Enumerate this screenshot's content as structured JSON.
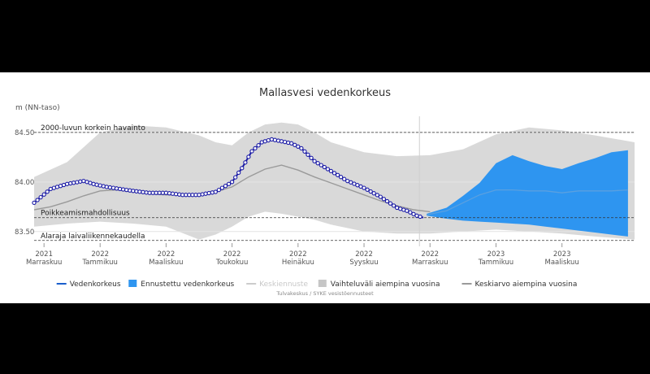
{
  "chart_data": {
    "type": "area",
    "title": "Mallasvesi vedenkorkeus",
    "ylabel": "m (NN-taso)",
    "ylim": [
      83.4,
      84.63
    ],
    "y_ticks": [
      "84.50",
      "84.00",
      "83.50"
    ],
    "y_tick_values": [
      84.5,
      84.0,
      83.5
    ],
    "x_range_months": [
      0,
      18.2
    ],
    "x_ticks": [
      {
        "year": "2021",
        "month": "Marraskuu",
        "pos": 0.3
      },
      {
        "year": "2022",
        "month": "Tammikuu",
        "pos": 2.0
      },
      {
        "year": "2022",
        "month": "Maaliskuu",
        "pos": 4.0
      },
      {
        "year": "2022",
        "month": "Toukokuu",
        "pos": 6.0
      },
      {
        "year": "2022",
        "month": "Heinäkuu",
        "pos": 8.0
      },
      {
        "year": "2022",
        "month": "Syyskuu",
        "pos": 10.0
      },
      {
        "year": "2022",
        "month": "Marraskuu",
        "pos": 12.0
      },
      {
        "year": "2023",
        "month": "Tammikuu",
        "pos": 14.0
      },
      {
        "year": "2023",
        "month": "Maaliskuu",
        "pos": 16.0
      }
    ],
    "forecast_start": 12.0,
    "reference_lines": [
      {
        "label": "2000-luvun korkein havainto",
        "value": 84.5
      },
      {
        "label": "Poikkeamismahdollisuus",
        "value": 83.64
      },
      {
        "label": "Alaraja laivaliikennekaudella",
        "value": 83.41
      }
    ],
    "series": [
      {
        "name": "Vedenkorkeus",
        "x": [
          0.0,
          0.5,
          1.0,
          1.5,
          1.8,
          2.2,
          2.6,
          3.0,
          3.5,
          4.0,
          4.5,
          5.0,
          5.5,
          6.0,
          6.3,
          6.6,
          6.9,
          7.2,
          7.5,
          7.8,
          8.1,
          8.5,
          9.0,
          9.5,
          10.0,
          10.5,
          11.0,
          11.3,
          11.6,
          11.8
        ],
        "y": [
          83.79,
          83.93,
          83.98,
          84.01,
          83.98,
          83.95,
          83.93,
          83.91,
          83.89,
          83.89,
          83.87,
          83.87,
          83.9,
          84.0,
          84.14,
          84.31,
          84.4,
          84.43,
          84.41,
          84.39,
          84.34,
          84.21,
          84.11,
          84.01,
          83.94,
          83.85,
          83.74,
          83.71,
          83.66,
          83.64
        ]
      },
      {
        "name": "Ennustettu vedenkorkeus",
        "x": [
          11.9,
          12.5,
          13.0,
          13.5,
          14.0,
          14.5,
          15.0,
          15.5,
          16.0,
          16.5,
          17.0,
          17.5,
          18.0
        ],
        "upper": [
          83.68,
          83.74,
          83.86,
          83.99,
          84.19,
          84.27,
          84.21,
          84.16,
          84.13,
          84.19,
          84.24,
          84.3,
          84.32
        ],
        "lower": [
          83.66,
          83.63,
          83.61,
          83.6,
          83.59,
          83.58,
          83.57,
          83.55,
          83.53,
          83.51,
          83.49,
          83.47,
          83.45
        ]
      },
      {
        "name": "Keskiennuste",
        "x": [
          11.9,
          12.5,
          13.0,
          13.5,
          14.0,
          14.5,
          15.0,
          15.5,
          16.0,
          16.5,
          17.0,
          17.5,
          18.0
        ],
        "y": [
          83.67,
          83.71,
          83.79,
          83.87,
          83.92,
          83.92,
          83.91,
          83.91,
          83.89,
          83.91,
          83.91,
          83.91,
          83.92
        ]
      },
      {
        "name": "Vaihteluväli aiempina vuosina",
        "x": [
          0,
          1,
          2,
          3,
          4,
          5,
          5.5,
          6,
          6.5,
          7,
          7.5,
          8,
          8.5,
          9,
          10,
          11,
          12,
          13,
          14,
          15,
          16,
          17,
          18.2
        ],
        "upper": [
          84.05,
          84.2,
          84.5,
          84.57,
          84.55,
          84.47,
          84.4,
          84.37,
          84.5,
          84.58,
          84.6,
          84.58,
          84.5,
          84.4,
          84.3,
          84.26,
          84.27,
          84.33,
          84.48,
          84.55,
          84.52,
          84.47,
          84.4
        ],
        "lower": [
          83.55,
          83.58,
          83.6,
          83.58,
          83.55,
          83.42,
          83.47,
          83.55,
          83.65,
          83.7,
          83.68,
          83.65,
          83.62,
          83.57,
          83.5,
          83.48,
          83.48,
          83.5,
          83.52,
          83.5,
          83.48,
          83.45,
          83.42
        ]
      },
      {
        "name": "Keskiarvo aiempina vuosina",
        "x": [
          0,
          0.5,
          1,
          1.5,
          2,
          2.5,
          3,
          3.5,
          4,
          4.5,
          5,
          5.5,
          6,
          6.5,
          7,
          7.5,
          8,
          8.5,
          9,
          9.5,
          10,
          10.5,
          11,
          11.5,
          12
        ],
        "y": [
          83.72,
          83.75,
          83.8,
          83.86,
          83.91,
          83.92,
          83.9,
          83.88,
          83.87,
          83.87,
          83.88,
          83.9,
          83.95,
          84.05,
          84.13,
          84.17,
          84.12,
          84.05,
          83.99,
          83.93,
          83.87,
          83.81,
          83.76,
          83.72,
          83.7
        ]
      }
    ],
    "legend": {
      "placement": "bottom",
      "items": [
        {
          "label": "Vedenkorkeus",
          "kind": "line",
          "color": "#1a5fcc",
          "dim": false
        },
        {
          "label": "Ennustettu vedenkorkeus",
          "kind": "box",
          "color": "#2e95f0",
          "dim": false
        },
        {
          "label": "Keskiennuste",
          "kind": "line",
          "color": "#cccccc",
          "dim": true
        },
        {
          "label": "Vaihteluväli aiempina vuosina",
          "kind": "box",
          "color": "#c6c6c6",
          "dim": false
        },
        {
          "label": "Keskiarvo aiempina vuosina",
          "kind": "line",
          "color": "#9a9a9a",
          "dim": false
        }
      ]
    },
    "credit": "Tulvakeskus / SYKE vesistöennusteet"
  },
  "colors": {
    "observed": "#1a1aa6",
    "observed_marker_fill": "#ffffff",
    "forecast": "#2e95f0",
    "forecast_mean": "#5aa0e0",
    "range": "#d9d9d9",
    "mean_history": "#9a9a9a",
    "reference_line": "#333333"
  }
}
